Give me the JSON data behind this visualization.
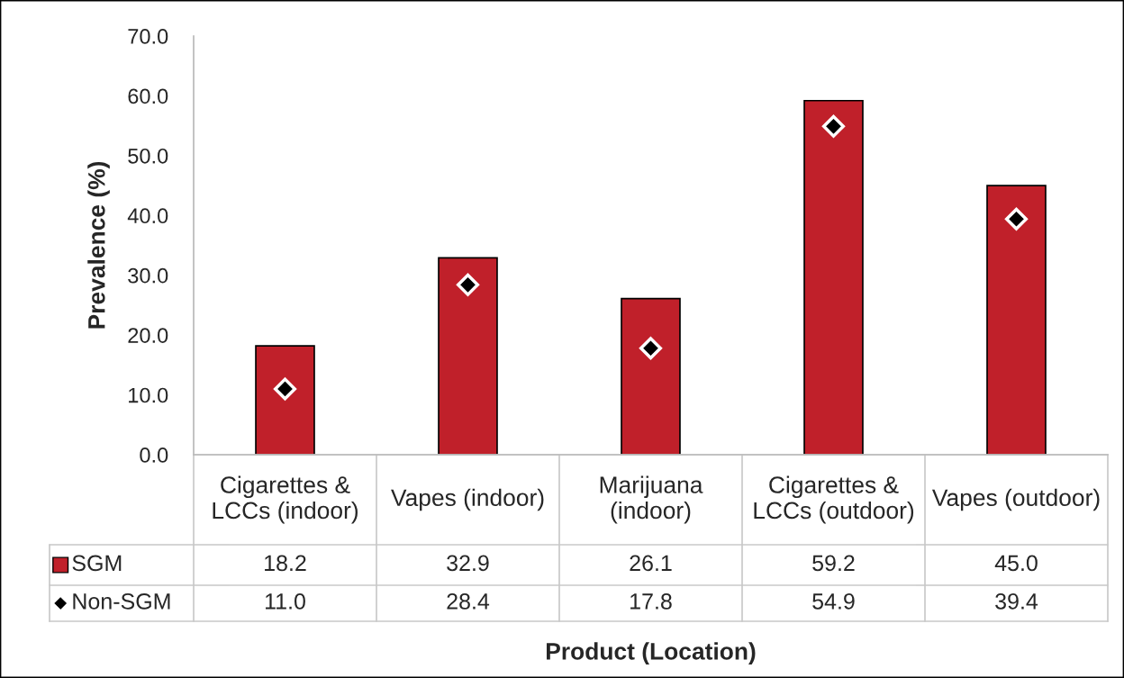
{
  "chart_data": {
    "type": "bar",
    "xlabel": "Product (Location)",
    "ylabel": "Prevalence (%)",
    "categories": [
      "Cigarettes & LCCs (indoor)",
      "Vapes (indoor)",
      "Marijuana (indoor)",
      "Cigarettes & LCCs (outdoor)",
      "Vapes (outdoor)"
    ],
    "series": [
      {
        "name": "SGM",
        "color": "#c0202a",
        "values": [
          18.2,
          32.9,
          26.1,
          59.2,
          45.0
        ],
        "value_labels": [
          "18.2",
          "32.9",
          "26.1",
          "59.2",
          "45.0"
        ]
      },
      {
        "name": "Non-SGM",
        "type": "scatter",
        "marker": "diamond",
        "color": "#000000",
        "values": [
          11.0,
          28.4,
          17.8,
          54.9,
          39.4
        ],
        "value_labels": [
          "11.0",
          "28.4",
          "17.8",
          "54.9",
          "39.4"
        ]
      }
    ],
    "ylim": [
      0,
      70
    ],
    "yticks": [
      {
        "value": 0,
        "label": "0.0"
      },
      {
        "value": 10,
        "label": "10.0"
      },
      {
        "value": 20,
        "label": "20.0"
      },
      {
        "value": 30,
        "label": "30.0"
      },
      {
        "value": 40,
        "label": "40.0"
      },
      {
        "value": 50,
        "label": "50.0"
      },
      {
        "value": 60,
        "label": "60.0"
      },
      {
        "value": 70,
        "label": "70.0"
      }
    ],
    "grid": false,
    "legend": "bottom"
  }
}
